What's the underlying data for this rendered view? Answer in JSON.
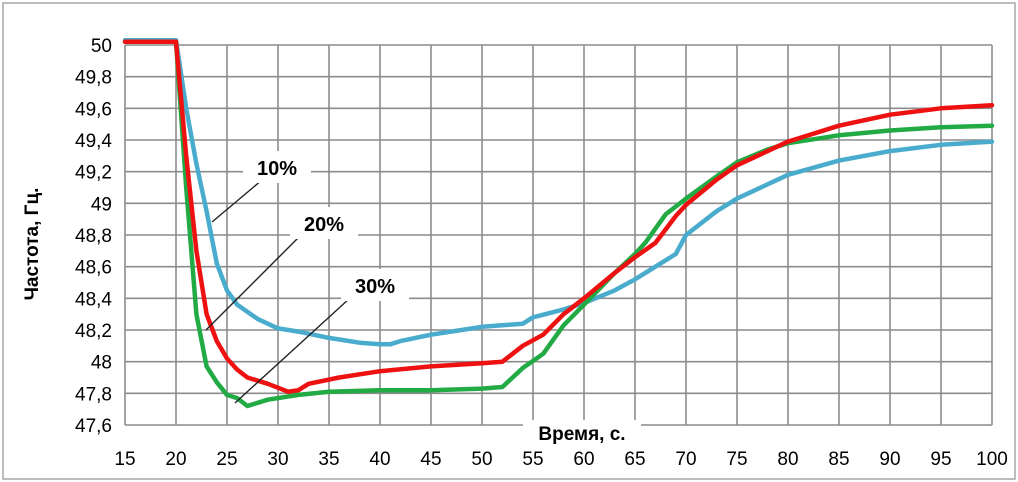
{
  "chart_data": {
    "type": "line",
    "xlabel": "Время, с.",
    "ylabel": "Частота, Гц.",
    "xlim": [
      15,
      100
    ],
    "ylim": [
      47.6,
      50.0
    ],
    "x_ticks": [
      "15",
      "20",
      "25",
      "30",
      "35",
      "40",
      "45",
      "50",
      "55",
      "60",
      "65",
      "70",
      "75",
      "80",
      "85",
      "90",
      "95",
      "100"
    ],
    "y_ticks": [
      "47,6",
      "47,8",
      "48",
      "48,2",
      "48,4",
      "48,6",
      "48,8",
      "49",
      "49,2",
      "49,4",
      "49,6",
      "49,8",
      "50"
    ],
    "grid": true,
    "legend": "none",
    "series": [
      {
        "name": "10%",
        "color": "#4aaccd",
        "points": [
          [
            15,
            50.03
          ],
          [
            20,
            50.03
          ],
          [
            21,
            49.6
          ],
          [
            22,
            49.25
          ],
          [
            23,
            48.95
          ],
          [
            24,
            48.62
          ],
          [
            25,
            48.45
          ],
          [
            26,
            48.36
          ],
          [
            28,
            48.27
          ],
          [
            30,
            48.21
          ],
          [
            32,
            48.19
          ],
          [
            35,
            48.15
          ],
          [
            38,
            48.12
          ],
          [
            40,
            48.11
          ],
          [
            41,
            48.11
          ],
          [
            42,
            48.13
          ],
          [
            45,
            48.17
          ],
          [
            48,
            48.2
          ],
          [
            50,
            48.22
          ],
          [
            52,
            48.23
          ],
          [
            54,
            48.24
          ],
          [
            55,
            48.28
          ],
          [
            58,
            48.33
          ],
          [
            60,
            48.37
          ],
          [
            63,
            48.45
          ],
          [
            65,
            48.52
          ],
          [
            67,
            48.6
          ],
          [
            69,
            48.68
          ],
          [
            70,
            48.8
          ],
          [
            73,
            48.95
          ],
          [
            75,
            49.03
          ],
          [
            80,
            49.18
          ],
          [
            85,
            49.27
          ],
          [
            90,
            49.33
          ],
          [
            95,
            49.37
          ],
          [
            100,
            49.39
          ]
        ]
      },
      {
        "name": "20%",
        "color": "#ee1111",
        "points": [
          [
            15,
            50.02
          ],
          [
            20,
            50.02
          ],
          [
            21,
            49.3
          ],
          [
            22,
            48.7
          ],
          [
            23,
            48.3
          ],
          [
            24,
            48.13
          ],
          [
            25,
            48.02
          ],
          [
            26,
            47.95
          ],
          [
            27,
            47.9
          ],
          [
            29,
            47.86
          ],
          [
            31,
            47.81
          ],
          [
            32,
            47.82
          ],
          [
            33,
            47.86
          ],
          [
            36,
            47.9
          ],
          [
            40,
            47.94
          ],
          [
            45,
            47.97
          ],
          [
            50,
            47.99
          ],
          [
            52,
            48.0
          ],
          [
            54,
            48.1
          ],
          [
            56,
            48.17
          ],
          [
            58,
            48.3
          ],
          [
            60,
            48.4
          ],
          [
            63,
            48.56
          ],
          [
            65,
            48.66
          ],
          [
            67,
            48.75
          ],
          [
            69,
            48.92
          ],
          [
            70,
            48.99
          ],
          [
            73,
            49.15
          ],
          [
            75,
            49.24
          ],
          [
            78,
            49.33
          ],
          [
            80,
            49.39
          ],
          [
            85,
            49.49
          ],
          [
            90,
            49.56
          ],
          [
            95,
            49.6
          ],
          [
            100,
            49.62
          ]
        ]
      },
      {
        "name": "30%",
        "color": "#22aa44",
        "points": [
          [
            15,
            50.02
          ],
          [
            20,
            50.02
          ],
          [
            21,
            49.1
          ],
          [
            22,
            48.3
          ],
          [
            23,
            47.97
          ],
          [
            24,
            47.87
          ],
          [
            25,
            47.79
          ],
          [
            26,
            47.77
          ],
          [
            27,
            47.72
          ],
          [
            28,
            47.74
          ],
          [
            29,
            47.76
          ],
          [
            32,
            47.79
          ],
          [
            35,
            47.81
          ],
          [
            40,
            47.82
          ],
          [
            45,
            47.82
          ],
          [
            50,
            47.83
          ],
          [
            52,
            47.84
          ],
          [
            54,
            47.96
          ],
          [
            56,
            48.05
          ],
          [
            58,
            48.23
          ],
          [
            60,
            48.36
          ],
          [
            63,
            48.56
          ],
          [
            65,
            48.68
          ],
          [
            66,
            48.75
          ],
          [
            68,
            48.93
          ],
          [
            70,
            49.03
          ],
          [
            73,
            49.17
          ],
          [
            75,
            49.26
          ],
          [
            78,
            49.34
          ],
          [
            80,
            49.38
          ],
          [
            85,
            49.43
          ],
          [
            90,
            49.46
          ],
          [
            95,
            49.48
          ],
          [
            100,
            49.49
          ]
        ]
      }
    ]
  }
}
